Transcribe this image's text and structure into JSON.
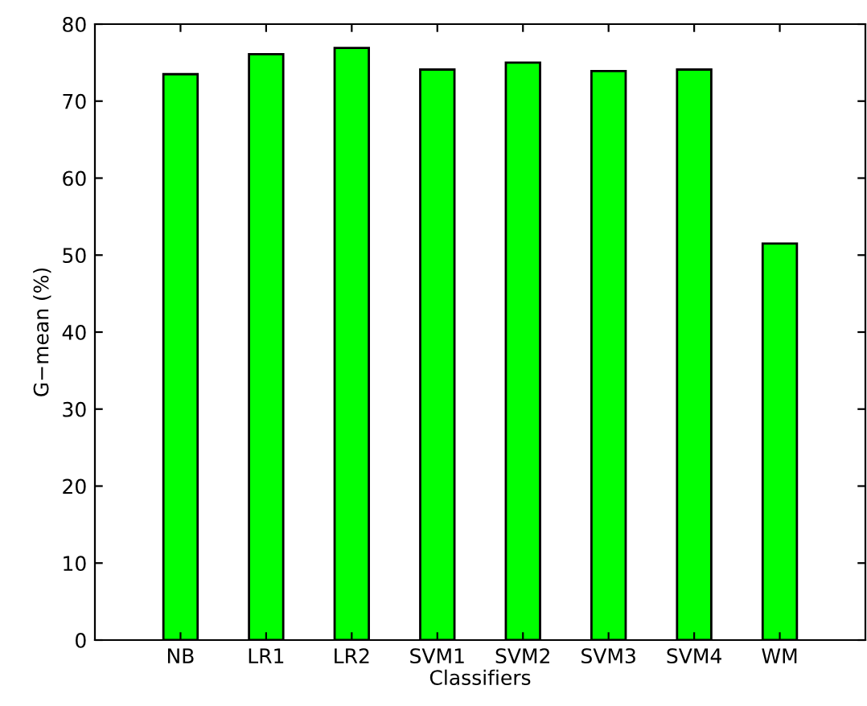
{
  "chart_data": {
    "type": "bar",
    "xlabel": "Classifiers",
    "ylabel": "G−mean (%)",
    "categories": [
      "NB",
      "LR1",
      "LR2",
      "SVM1",
      "SVM2",
      "SVM3",
      "SVM4",
      "WM"
    ],
    "values": [
      73.5,
      76.1,
      76.9,
      74.1,
      75.0,
      73.9,
      74.1,
      51.5
    ],
    "color": "#00ff00",
    "ylim": [
      0,
      80
    ],
    "yticks": [
      0,
      10,
      20,
      30,
      40,
      50,
      60,
      70,
      80
    ],
    "grid": false
  }
}
